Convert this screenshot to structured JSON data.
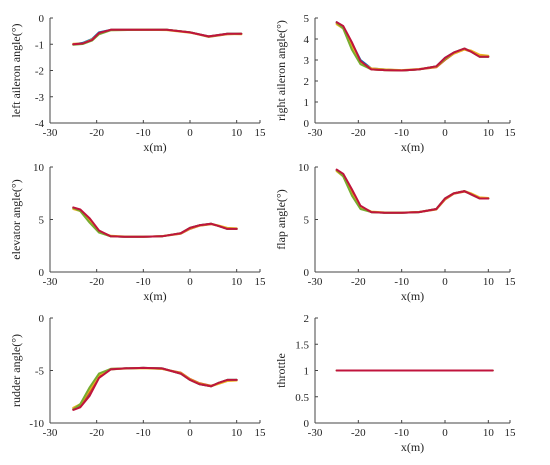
{
  "chart_data": [
    {
      "type": "line",
      "xlabel": "x(m)",
      "ylabel": "left aileron angle(°)",
      "xlim": [
        -30,
        15
      ],
      "ylim": [
        -4,
        0
      ],
      "xticks": [
        -30,
        -20,
        -10,
        0,
        10,
        15
      ],
      "yticks": [
        0,
        -1,
        -2,
        -3,
        -4
      ],
      "grid": false,
      "series": [
        {
          "color": "#0072BD",
          "x": [
            -25,
            -23,
            -21,
            -19.5,
            -17,
            -10,
            -5,
            0,
            4,
            8,
            11
          ],
          "y": [
            -1.0,
            -0.95,
            -0.8,
            -0.55,
            -0.45,
            -0.45,
            -0.45,
            -0.55,
            -0.7,
            -0.6,
            -0.6
          ]
        },
        {
          "color": "#D95319",
          "x": [
            -25,
            -23,
            -21,
            -19.5,
            -17,
            -10,
            -5,
            0,
            4,
            8,
            11
          ],
          "y": [
            -1.0,
            -0.98,
            -0.85,
            -0.6,
            -0.45,
            -0.45,
            -0.45,
            -0.55,
            -0.72,
            -0.62,
            -0.6
          ]
        },
        {
          "color": "#EDB120",
          "x": [
            -25,
            -23,
            -21,
            -19.5,
            -17,
            -10,
            -5,
            0,
            4,
            8,
            11
          ],
          "y": [
            -0.98,
            -0.97,
            -0.82,
            -0.58,
            -0.46,
            -0.45,
            -0.46,
            -0.56,
            -0.7,
            -0.61,
            -0.62
          ]
        },
        {
          "color": "#77AC30",
          "x": [
            -25,
            -23,
            -21,
            -19.5,
            -17,
            -10,
            -5,
            0,
            4,
            8,
            11
          ],
          "y": [
            -1.02,
            -0.99,
            -0.86,
            -0.62,
            -0.47,
            -0.45,
            -0.45,
            -0.54,
            -0.71,
            -0.6,
            -0.6
          ]
        },
        {
          "color": "#C0143C",
          "x": [
            -25,
            -23,
            -21,
            -19.5,
            -17,
            -10,
            -5,
            0,
            4,
            8,
            11
          ],
          "y": [
            -1.0,
            -0.97,
            -0.84,
            -0.57,
            -0.45,
            -0.45,
            -0.45,
            -0.55,
            -0.7,
            -0.6,
            -0.6
          ]
        }
      ]
    },
    {
      "type": "line",
      "xlabel": "x(m)",
      "ylabel": "right aileron angle(°)",
      "xlim": [
        -30,
        15
      ],
      "ylim": [
        0,
        5
      ],
      "xticks": [
        -30,
        -20,
        -10,
        0,
        10,
        15
      ],
      "yticks": [
        0,
        1,
        2,
        3,
        4,
        5
      ],
      "grid": false,
      "series": [
        {
          "color": "#0072BD",
          "x": [
            -25,
            -23.5,
            -21.5,
            -19.5,
            -17,
            -14,
            -10,
            -6,
            -2,
            0,
            2,
            4.5,
            6,
            8,
            10
          ],
          "y": [
            4.8,
            4.6,
            3.8,
            3.0,
            2.6,
            2.55,
            2.5,
            2.55,
            2.7,
            3.1,
            3.35,
            3.55,
            3.4,
            3.15,
            3.15
          ]
        },
        {
          "color": "#D95319",
          "x": [
            -25,
            -23.5,
            -21.5,
            -19.5,
            -17,
            -14,
            -10,
            -6,
            -2,
            0,
            2,
            4.5,
            6,
            8,
            10
          ],
          "y": [
            4.75,
            4.55,
            3.7,
            2.85,
            2.55,
            2.52,
            2.5,
            2.55,
            2.65,
            3.0,
            3.3,
            3.5,
            3.4,
            3.2,
            3.15
          ]
        },
        {
          "color": "#EDB120",
          "x": [
            -25,
            -23.5,
            -21.5,
            -19.5,
            -17,
            -14,
            -10,
            -6,
            -2,
            0,
            2,
            4.5,
            6,
            8,
            10
          ],
          "y": [
            4.7,
            4.5,
            3.6,
            2.9,
            2.6,
            2.55,
            2.52,
            2.57,
            2.68,
            3.05,
            3.3,
            3.5,
            3.45,
            3.25,
            3.2
          ]
        },
        {
          "color": "#77AC30",
          "x": [
            -25,
            -23.5,
            -21.5,
            -19.5,
            -17,
            -14,
            -10,
            -6,
            -2,
            0,
            2,
            4.5,
            6,
            8,
            10
          ],
          "y": [
            4.78,
            4.5,
            3.5,
            2.8,
            2.55,
            2.52,
            2.5,
            2.55,
            2.7,
            3.05,
            3.35,
            3.55,
            3.4,
            3.15,
            3.15
          ]
        },
        {
          "color": "#C0143C",
          "x": [
            -25,
            -23.5,
            -21.5,
            -19.5,
            -17,
            -14,
            -10,
            -6,
            -2,
            0,
            2,
            4.5,
            6,
            8,
            10
          ],
          "y": [
            4.8,
            4.62,
            3.85,
            2.95,
            2.55,
            2.52,
            2.5,
            2.55,
            2.7,
            3.1,
            3.35,
            3.55,
            3.4,
            3.15,
            3.15
          ]
        }
      ]
    },
    {
      "type": "line",
      "xlabel": "x(m)",
      "ylabel": "elevator angle(°)",
      "xlim": [
        -30,
        15
      ],
      "ylim": [
        0,
        10
      ],
      "xticks": [
        -30,
        -20,
        -10,
        0,
        10,
        15
      ],
      "yticks": [
        0,
        5,
        10
      ],
      "grid": false,
      "series": [
        {
          "color": "#0072BD",
          "x": [
            -25,
            -23.5,
            -21.5,
            -19.5,
            -17,
            -14,
            -10,
            -6,
            -2,
            0,
            2,
            4.5,
            6,
            8,
            10
          ],
          "y": [
            6.1,
            5.9,
            5.0,
            3.9,
            3.4,
            3.35,
            3.35,
            3.4,
            3.7,
            4.2,
            4.45,
            4.6,
            4.4,
            4.1,
            4.1
          ]
        },
        {
          "color": "#D95319",
          "x": [
            -25,
            -23.5,
            -21.5,
            -19.5,
            -17,
            -14,
            -10,
            -6,
            -2,
            0,
            2,
            4.5,
            6,
            8,
            10
          ],
          "y": [
            6.05,
            5.85,
            4.9,
            3.8,
            3.4,
            3.35,
            3.35,
            3.4,
            3.65,
            4.1,
            4.4,
            4.55,
            4.4,
            4.15,
            4.1
          ]
        },
        {
          "color": "#EDB120",
          "x": [
            -25,
            -23.5,
            -21.5,
            -19.5,
            -17,
            -14,
            -10,
            -6,
            -2,
            0,
            2,
            4.5,
            6,
            8,
            10
          ],
          "y": [
            6.0,
            5.8,
            4.8,
            3.85,
            3.45,
            3.38,
            3.36,
            3.42,
            3.68,
            4.15,
            4.42,
            4.58,
            4.45,
            4.2,
            4.15
          ]
        },
        {
          "color": "#77AC30",
          "x": [
            -25,
            -23.5,
            -21.5,
            -19.5,
            -17,
            -14,
            -10,
            -6,
            -2,
            0,
            2,
            4.5,
            6,
            8,
            10
          ],
          "y": [
            6.1,
            5.8,
            4.7,
            3.75,
            3.4,
            3.35,
            3.35,
            3.4,
            3.7,
            4.2,
            4.45,
            4.6,
            4.4,
            4.1,
            4.1
          ]
        },
        {
          "color": "#C0143C",
          "x": [
            -25,
            -23.5,
            -21.5,
            -19.5,
            -17,
            -14,
            -10,
            -6,
            -2,
            0,
            2,
            4.5,
            6,
            8,
            10
          ],
          "y": [
            6.15,
            5.95,
            5.1,
            3.95,
            3.4,
            3.35,
            3.35,
            3.4,
            3.7,
            4.2,
            4.45,
            4.6,
            4.4,
            4.1,
            4.1
          ]
        }
      ]
    },
    {
      "type": "line",
      "xlabel": "x(m)",
      "ylabel": "flap angle(°)",
      "xlim": [
        -30,
        15
      ],
      "ylim": [
        0,
        10
      ],
      "xticks": [
        -30,
        -20,
        -10,
        0,
        10,
        15
      ],
      "yticks": [
        0,
        5,
        10
      ],
      "grid": false,
      "series": [
        {
          "color": "#0072BD",
          "x": [
            -25,
            -23.5,
            -21.5,
            -19.5,
            -17,
            -14,
            -10,
            -6,
            -2,
            0,
            2,
            4.5,
            6,
            8,
            10
          ],
          "y": [
            9.7,
            9.3,
            7.8,
            6.2,
            5.7,
            5.65,
            5.65,
            5.7,
            6.0,
            7.0,
            7.5,
            7.7,
            7.4,
            7.0,
            7.0
          ]
        },
        {
          "color": "#D95319",
          "x": [
            -25,
            -23.5,
            -21.5,
            -19.5,
            -17,
            -14,
            -10,
            -6,
            -2,
            0,
            2,
            4.5,
            6,
            8,
            10
          ],
          "y": [
            9.65,
            9.2,
            7.6,
            6.1,
            5.7,
            5.65,
            5.65,
            5.7,
            5.95,
            6.9,
            7.45,
            7.65,
            7.45,
            7.05,
            7.0
          ]
        },
        {
          "color": "#EDB120",
          "x": [
            -25,
            -23.5,
            -21.5,
            -19.5,
            -17,
            -14,
            -10,
            -6,
            -2,
            0,
            2,
            4.5,
            6,
            8,
            10
          ],
          "y": [
            9.6,
            9.1,
            7.4,
            6.2,
            5.75,
            5.68,
            5.66,
            5.72,
            5.98,
            6.95,
            7.5,
            7.7,
            7.5,
            7.1,
            7.05
          ]
        },
        {
          "color": "#77AC30",
          "x": [
            -25,
            -23.5,
            -21.5,
            -19.5,
            -17,
            -14,
            -10,
            -6,
            -2,
            0,
            2,
            4.5,
            6,
            8,
            10
          ],
          "y": [
            9.7,
            9.1,
            7.3,
            6.0,
            5.7,
            5.65,
            5.65,
            5.7,
            6.0,
            7.0,
            7.5,
            7.7,
            7.4,
            7.0,
            7.0
          ]
        },
        {
          "color": "#C0143C",
          "x": [
            -25,
            -23.5,
            -21.5,
            -19.5,
            -17,
            -14,
            -10,
            -6,
            -2,
            0,
            2,
            4.5,
            6,
            8,
            10
          ],
          "y": [
            9.75,
            9.35,
            7.9,
            6.3,
            5.7,
            5.65,
            5.65,
            5.7,
            6.0,
            7.0,
            7.5,
            7.7,
            7.4,
            7.0,
            7.0
          ]
        }
      ]
    },
    {
      "type": "line",
      "xlabel": "",
      "ylabel": "rudder angle(°)",
      "xlim": [
        -30,
        15
      ],
      "ylim": [
        -10,
        0
      ],
      "xticks": [
        -30,
        -20,
        -10,
        0,
        10,
        15
      ],
      "yticks": [
        0,
        -5,
        -10
      ],
      "grid": false,
      "series": [
        {
          "color": "#0072BD",
          "x": [
            -25,
            -23.5,
            -21.5,
            -19.5,
            -17,
            -14,
            -10,
            -6,
            -2,
            0,
            2,
            4.5,
            6,
            8,
            10
          ],
          "y": [
            -8.7,
            -8.4,
            -7.2,
            -5.6,
            -4.9,
            -4.8,
            -4.75,
            -4.8,
            -5.3,
            -5.9,
            -6.3,
            -6.5,
            -6.2,
            -5.9,
            -5.9
          ]
        },
        {
          "color": "#D95319",
          "x": [
            -25,
            -23.5,
            -21.5,
            -19.5,
            -17,
            -14,
            -10,
            -6,
            -2,
            0,
            2,
            4.5,
            6,
            8,
            10
          ],
          "y": [
            -8.6,
            -8.3,
            -7.0,
            -5.5,
            -4.85,
            -4.8,
            -4.75,
            -4.85,
            -5.2,
            -5.8,
            -6.2,
            -6.45,
            -6.25,
            -5.95,
            -5.9
          ]
        },
        {
          "color": "#EDB120",
          "x": [
            -25,
            -23.5,
            -21.5,
            -19.5,
            -17,
            -14,
            -10,
            -6,
            -2,
            0,
            2,
            4.5,
            6,
            8,
            10
          ],
          "y": [
            -8.55,
            -8.2,
            -6.8,
            -5.4,
            -4.9,
            -4.82,
            -4.78,
            -4.85,
            -5.25,
            -5.85,
            -6.25,
            -6.5,
            -6.3,
            -6.0,
            -5.95
          ]
        },
        {
          "color": "#77AC30",
          "x": [
            -25,
            -23.5,
            -21.5,
            -19.5,
            -17,
            -14,
            -10,
            -6,
            -2,
            0,
            2,
            4.5,
            6,
            8,
            10
          ],
          "y": [
            -8.7,
            -8.2,
            -6.6,
            -5.3,
            -4.85,
            -4.8,
            -4.75,
            -4.8,
            -5.3,
            -5.9,
            -6.3,
            -6.5,
            -6.2,
            -5.9,
            -5.9
          ]
        },
        {
          "color": "#C0143C",
          "x": [
            -25,
            -23.5,
            -21.5,
            -19.5,
            -17,
            -14,
            -10,
            -6,
            -2,
            0,
            2,
            4.5,
            6,
            8,
            10
          ],
          "y": [
            -8.75,
            -8.5,
            -7.4,
            -5.7,
            -4.9,
            -4.8,
            -4.75,
            -4.8,
            -5.3,
            -5.9,
            -6.3,
            -6.5,
            -6.2,
            -5.9,
            -5.9
          ]
        }
      ]
    },
    {
      "type": "line",
      "xlabel": "x(m)",
      "ylabel": "throttle",
      "xlim": [
        -30,
        15
      ],
      "ylim": [
        0,
        2
      ],
      "xticks": [
        -30,
        -20,
        -10,
        0,
        10,
        15
      ],
      "yticks": [
        0,
        0.5,
        1,
        1.5,
        2
      ],
      "grid": false,
      "series": [
        {
          "color": "#0072BD",
          "x": [
            -25,
            11
          ],
          "y": [
            1,
            1
          ]
        },
        {
          "color": "#D95319",
          "x": [
            -25,
            11
          ],
          "y": [
            1,
            1
          ]
        },
        {
          "color": "#EDB120",
          "x": [
            -25,
            11
          ],
          "y": [
            1,
            1
          ]
        },
        {
          "color": "#77AC30",
          "x": [
            -25,
            11
          ],
          "y": [
            1,
            1
          ]
        },
        {
          "color": "#C0143C",
          "x": [
            -25,
            11
          ],
          "y": [
            1,
            1
          ]
        }
      ]
    }
  ]
}
